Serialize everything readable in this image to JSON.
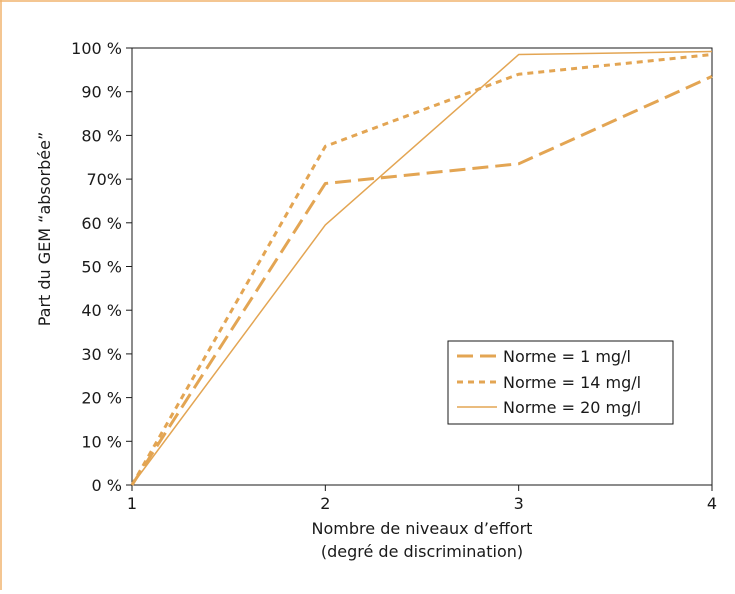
{
  "chart_data": {
    "type": "line",
    "title": "",
    "xlabel": [
      "Nombre de niveaux d’effort",
      "(degré de discrimination)"
    ],
    "ylabel": "Part du GEM “absorbée”",
    "x": [
      1,
      2,
      3,
      4
    ],
    "x_tick_labels": [
      "1",
      "2",
      "3",
      "4"
    ],
    "xlim": [
      1,
      4
    ],
    "ylim": [
      0,
      100
    ],
    "y_ticks": [
      0,
      10,
      20,
      30,
      40,
      50,
      60,
      70,
      80,
      90,
      100
    ],
    "y_tick_labels": [
      "0 %",
      "10 %",
      "20 %",
      "30 %",
      "40 %",
      "50 %",
      "60 %",
      "70%",
      "80 %",
      "90 %",
      "100 %"
    ],
    "grid": false,
    "legend_position": "lower-right",
    "series": [
      {
        "name": "Norme = 1 mg/l",
        "values": [
          0,
          69,
          73.5,
          93.5
        ],
        "style": "dashed",
        "color": "#E3A553"
      },
      {
        "name": "Norme = 14 mg/l",
        "values": [
          0,
          77.5,
          94,
          98.5
        ],
        "style": "dotted",
        "color": "#E3A553"
      },
      {
        "name": "Norme = 20 mg/l",
        "values": [
          0,
          59.5,
          98.5,
          99.2
        ],
        "style": "solid",
        "color": "#E3A553"
      }
    ]
  },
  "frame_color": "#F0B46E"
}
